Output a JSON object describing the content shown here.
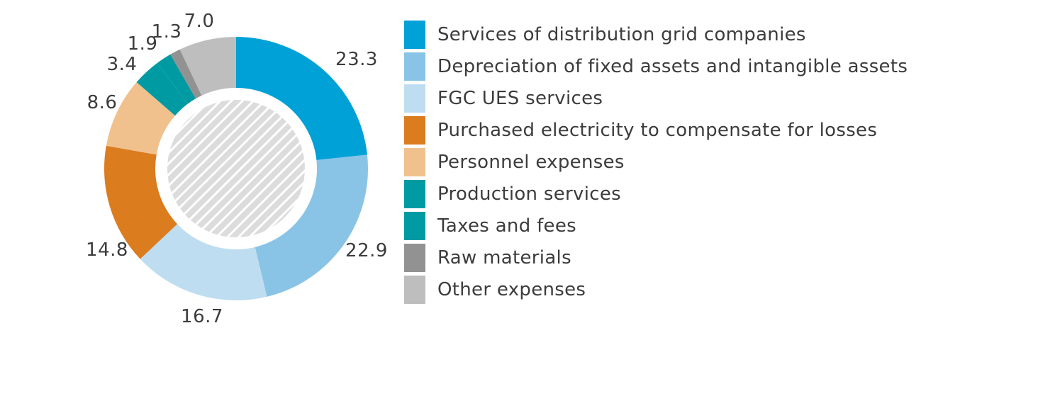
{
  "chart_data": {
    "type": "pie",
    "subtype": "donut",
    "start_angle_deg": 0,
    "direction": "clockwise",
    "legend_position": "right",
    "inner_fill": "hatched-gray-circle",
    "series": [
      {
        "label": "Services of distribution grid companies",
        "value": 23.3,
        "display": "23.3",
        "color": "#00A1D6"
      },
      {
        "label": "Depreciation of fixed assets and intangible assets",
        "value": 22.9,
        "display": "22.9",
        "color": "#89C4E6"
      },
      {
        "label": "FGC UES services",
        "value": 16.7,
        "display": "16.7",
        "color": "#BFDDF0"
      },
      {
        "label": "Purchased electricity to compensate for losses",
        "value": 14.8,
        "display": "14.8",
        "color": "#DB7C1E"
      },
      {
        "label": "Personnel expenses",
        "value": 8.6,
        "display": "8.6",
        "color": "#F0C18C"
      },
      {
        "label": "Production services",
        "value": 3.4,
        "display": "3.4",
        "color": "#009AA3"
      },
      {
        "label": "Taxes and fees",
        "value": 1.9,
        "display": "1.9",
        "color": "#009AA3"
      },
      {
        "label": "Raw materials",
        "value": 1.3,
        "display": "1.3",
        "color": "#929292"
      },
      {
        "label": "Other expenses",
        "value": 7.0,
        "display": "7.0",
        "color": "#BEBEBE"
      }
    ],
    "colors": {
      "label_text": "#3c3c3c",
      "hatch_background": "#DCDCDC",
      "hatch_stripe": "#FFFFFF"
    }
  }
}
